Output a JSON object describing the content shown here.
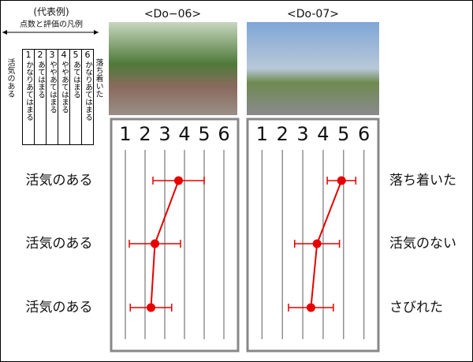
{
  "legend": {
    "title": "(代表例)",
    "subtitle": "点数と評価の凡例",
    "left": "活気のある",
    "right": "落ち着いた",
    "columns": [
      {
        "score": "1",
        "text": "かなりあてはまる"
      },
      {
        "score": "2",
        "text": "あてはまる"
      },
      {
        "score": "3",
        "text": "ややあてはまる"
      },
      {
        "score": "4",
        "text": "ややあてはまる"
      },
      {
        "score": "5",
        "text": "あてはまる"
      },
      {
        "score": "6",
        "text": "かなりあてはまる"
      }
    ]
  },
  "row_labels_left": [
    "活気のある",
    "活気のある",
    "活気のある"
  ],
  "row_labels_right": [
    "落ち着いた",
    "活気のない",
    "さびれた"
  ],
  "chart_data": [
    {
      "type": "line",
      "title": "<Do−06>",
      "xlim": [
        0.6,
        6.4
      ],
      "xticks": [
        1,
        2,
        3,
        4,
        5,
        6
      ],
      "grid": true,
      "series": [
        {
          "color": "#e60000",
          "values": [
            3.7,
            2.5,
            2.3
          ],
          "errors": [
            1.3,
            1.3,
            1.05
          ]
        }
      ]
    },
    {
      "type": "line",
      "title": "<Do-07>",
      "xlim": [
        0.6,
        6.4
      ],
      "xticks": [
        1,
        2,
        3,
        4,
        5,
        6
      ],
      "grid": true,
      "series": [
        {
          "color": "#e60000",
          "values": [
            4.9,
            3.7,
            3.4
          ],
          "errors": [
            0.7,
            1.1,
            1.1
          ]
        }
      ]
    }
  ]
}
